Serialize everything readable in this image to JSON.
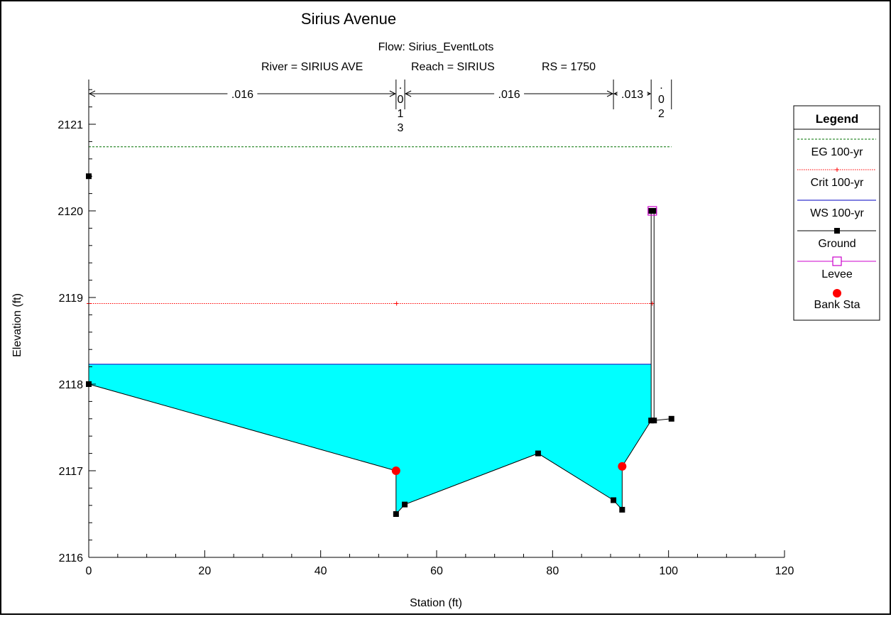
{
  "chart_data": {
    "type": "line",
    "title": "Sirius Avenue",
    "subtitle": "Flow: Sirius_EventLots",
    "location": {
      "river": "River = SIRIUS AVE",
      "reach": "Reach = SIRIUS",
      "rs": "RS = 1750"
    },
    "xlabel": "Station (ft)",
    "ylabel": "Elevation (ft)",
    "xlim": [
      0,
      120
    ],
    "ylim": [
      2116,
      2121.5
    ],
    "x_ticks": [
      0,
      20,
      40,
      60,
      80,
      100,
      120
    ],
    "y_ticks": [
      2116,
      2117,
      2118,
      2119,
      2120,
      2121
    ],
    "x_tick_labels": [
      "0",
      "20",
      "40",
      "60",
      "80",
      "100",
      "120"
    ],
    "y_tick_labels": [
      "2116",
      "2117",
      "2118",
      "2119",
      "2120",
      "2121"
    ],
    "grid": false,
    "legend_position": "right",
    "legend_title": "Legend",
    "mannings": [
      {
        "from": 0,
        "to": 53,
        "label": ".016"
      },
      {
        "from": 53,
        "to": 54.5,
        "label": ".013",
        "vertical": true
      },
      {
        "from": 54.5,
        "to": 90.5,
        "label": ".016"
      },
      {
        "from": 90.5,
        "to": 97,
        "label": ".013"
      },
      {
        "from": 97,
        "to": 100.5,
        "label": ".02",
        "vertical": true
      }
    ],
    "series": [
      {
        "name": "EG 100-yr",
        "color": "#007000",
        "style": "dashed",
        "x": [
          0,
          100.5
        ],
        "y": [
          2120.74,
          2120.74
        ]
      },
      {
        "name": "Crit 100-yr",
        "color": "#ff0000",
        "style": "dotted",
        "marker": "plus",
        "x": [
          0,
          53.1,
          97.2
        ],
        "y": [
          2118.93,
          2118.93,
          2118.93
        ]
      },
      {
        "name": "WS 100-yr",
        "color": "#0000c0",
        "style": "solid",
        "x": [
          0,
          97
        ],
        "y": [
          2118.23,
          2118.23
        ]
      },
      {
        "name": "Ground",
        "color": "#000000",
        "style": "solid",
        "marker": "square",
        "x": [
          0,
          0,
          53,
          53,
          54.5,
          77.5,
          90.5,
          92,
          92,
          97,
          97,
          97.5,
          97.5,
          100.5
        ],
        "y": [
          2120.4,
          2118,
          2117,
          2116.5,
          2116.61,
          2117.2,
          2116.66,
          2116.55,
          2117.05,
          2117.58,
          2120,
          2120,
          2117.58,
          2117.6
        ]
      },
      {
        "name": "Levee",
        "color": "#cc00cc",
        "style": "solid",
        "marker": "open-square",
        "x": [
          97.2
        ],
        "y": [
          2120
        ]
      },
      {
        "name": "Bank Sta",
        "color": "#ff0000",
        "marker": "circle",
        "x": [
          53,
          92
        ],
        "y": [
          2117,
          2117.05
        ]
      }
    ],
    "water_fill_color": "#00ffff"
  }
}
